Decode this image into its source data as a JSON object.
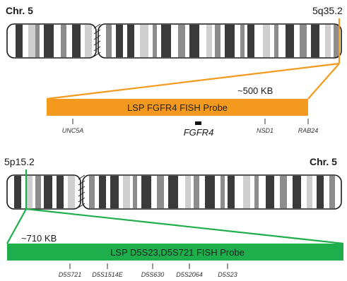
{
  "top": {
    "chromosome_label": "Chr. 5",
    "band_label": "5q35.2",
    "size_label": "~500 KB",
    "probe_label": "LSP FGFR4 FISH Probe",
    "probe_color": "#F39A1E",
    "genes": [
      "UNC5A",
      "NSD1",
      "RAB24"
    ],
    "target_gene": "FGFR4"
  },
  "bottom": {
    "chromosome_label": "Chr. 5",
    "band_label": "5p15.2",
    "size_label": "~710 KB",
    "probe_label": "LSP D5S23,D5S721 FISH Probe",
    "probe_color": "#1EAE4B",
    "genes": [
      "D5S721",
      "D5S1514E",
      "D5S630",
      "D5S2064",
      "D5S23"
    ]
  },
  "colors": {
    "band_dark": "#3a3a3a",
    "band_mid": "#8c8c8c",
    "band_light": "#cfcfcf",
    "outline": "#1a1a1a"
  }
}
